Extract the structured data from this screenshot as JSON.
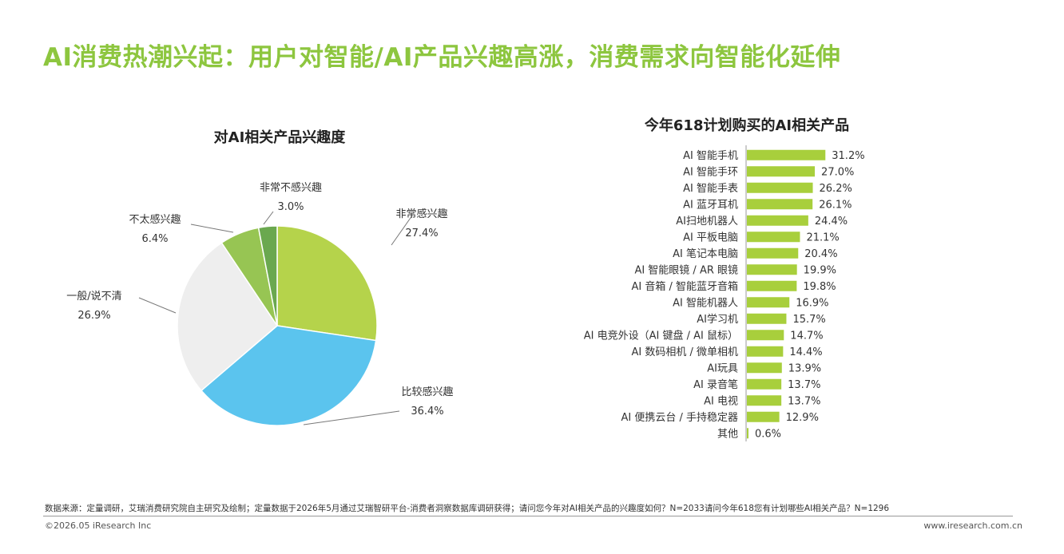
{
  "page": {
    "title": "AI消费热潮兴起：用户对智能/AI产品兴趣高涨，消费需求向智能化延伸",
    "title_color": "#8dc63f",
    "footer_source": "数据来源：定量调研，艾瑞消费研究院自主研究及绘制；定量数据于2026年5月通过艾瑞智研平台-消费者洞察数据库调研获得；请问您今年对AI相关产品的兴趣度如何？N=2033请问今年618您有计划哪些AI相关产品？N=1296",
    "copyright": "©2026.05 iResearch Inc",
    "website": "www.iresearch.com.cn"
  },
  "chart_data": [
    {
      "type": "pie",
      "title": "对AI相关产品兴趣度",
      "slices": [
        {
          "label": "非常感兴趣",
          "value": 27.4,
          "value_label": "27.4%",
          "color": "#b5d34b"
        },
        {
          "label": "比较感兴趣",
          "value": 36.4,
          "value_label": "36.4%",
          "color": "#5bc4ee"
        },
        {
          "label": "一般/说不清",
          "value": 26.9,
          "value_label": "26.9%",
          "color": "#eeeeee"
        },
        {
          "label": "不太感兴趣",
          "value": 6.4,
          "value_label": "6.4%",
          "color": "#97c553"
        },
        {
          "label": "非常不感兴趣",
          "value": 3.0,
          "value_label": "3.0%",
          "color": "#6aa84f"
        }
      ]
    },
    {
      "type": "bar",
      "orientation": "horizontal",
      "title": "今年618计划购买的AI相关产品",
      "color": "#a8cf3c",
      "categories": [
        "AI 智能手机",
        "AI 智能手环",
        "AI 智能手表",
        "AI 蓝牙耳机",
        "AI扫地机器人",
        "AI 平板电脑",
        "AI 笔记本电脑",
        "AI 智能眼镜 / AR 眼镜",
        "AI 音箱 / 智能蓝牙音箱",
        "AI 智能机器人",
        "AI学习机",
        "AI 电竞外设（AI 键盘 / AI 鼠标）",
        "AI 数码相机 / 微单相机",
        "AI玩具",
        "AI 录音笔",
        "AI 电视",
        "AI 便携云台 / 手持稳定器",
        "其他"
      ],
      "values": [
        31.2,
        27.0,
        26.2,
        26.1,
        24.4,
        21.1,
        20.4,
        19.9,
        19.8,
        16.9,
        15.7,
        14.7,
        14.4,
        13.9,
        13.7,
        13.7,
        12.9,
        0.6
      ],
      "value_labels": [
        "31.2%",
        "27.0%",
        "26.2%",
        "26.1%",
        "24.4%",
        "21.1%",
        "20.4%",
        "19.9%",
        "19.8%",
        "16.9%",
        "15.7%",
        "14.7%",
        "14.4%",
        "13.9%",
        "13.7%",
        "13.7%",
        "12.9%",
        "0.6%"
      ]
    }
  ]
}
